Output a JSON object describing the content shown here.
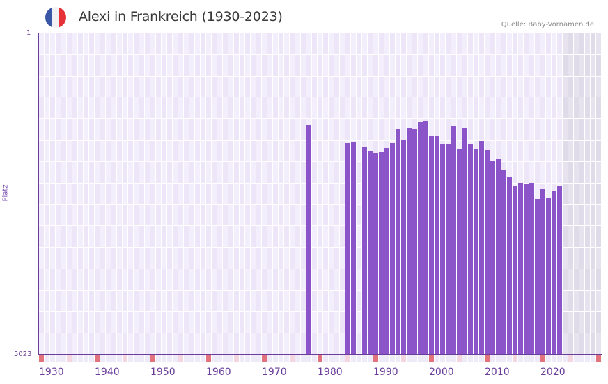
{
  "header": {
    "title": "Alexi in Frankreich (1930-2023)",
    "source": "Quelle: Baby-Vornamen.de",
    "flag": {
      "country": "France",
      "colors": [
        "#3a56a6",
        "#f2f2f5",
        "#e63236"
      ]
    }
  },
  "colors": {
    "bar": "#8b55c9",
    "axis": "#6a3d9a",
    "grid_a": "#f2eefb",
    "grid_b": "#ece6f8",
    "future_a": "#e7e3ee",
    "future_b": "#e0dbe9",
    "decade_mark": "#e2727c",
    "half_decade_mark": "#f3d6df",
    "other_mark": "#efeaf7"
  },
  "chart_data": {
    "type": "bar",
    "title": "Alexi in Frankreich (1930-2023)",
    "xlabel": "",
    "ylabel": "Platz",
    "y_inverted": true,
    "ylim": [
      5023,
      1
    ],
    "ytick_labels": [
      "1",
      "5023"
    ],
    "xtick_labels": [
      "1930",
      "1940",
      "1950",
      "1960",
      "1970",
      "1980",
      "1990",
      "2000",
      "2010",
      "2020"
    ],
    "x_range": [
      1930,
      2030
    ],
    "grid": true,
    "legend": null,
    "source": "Quelle: Baby-Vornamen.de",
    "categories": [
      1978,
      1985,
      1986,
      1988,
      1989,
      1990,
      1991,
      1992,
      1993,
      1994,
      1995,
      1996,
      1997,
      1998,
      1999,
      2000,
      2001,
      2002,
      2003,
      2004,
      2005,
      2006,
      2007,
      2008,
      2009,
      2010,
      2011,
      2012,
      2013,
      2014,
      2015,
      2016,
      2017,
      2018,
      2019,
      2020,
      2021,
      2022,
      2023
    ],
    "values": [
      1436,
      1718,
      1697,
      1773,
      1838,
      1870,
      1849,
      1794,
      1718,
      1490,
      1664,
      1479,
      1490,
      1392,
      1371,
      1610,
      1599,
      1729,
      1729,
      1447,
      1806,
      1479,
      1729,
      1806,
      1686,
      1827,
      2001,
      1958,
      2143,
      2251,
      2393,
      2338,
      2360,
      2338,
      2588,
      2436,
      2566,
      2469,
      2382
    ]
  },
  "labels": {
    "y_top": "1",
    "y_bottom": "5023",
    "y_axis": "Platz"
  }
}
